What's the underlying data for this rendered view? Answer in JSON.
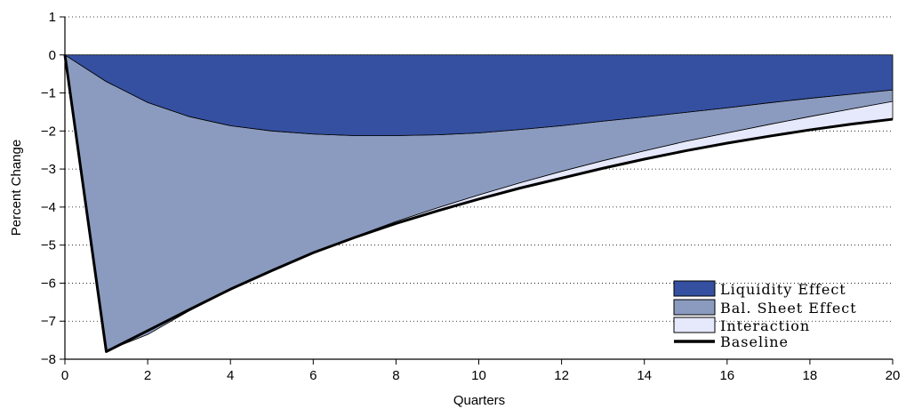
{
  "chart_data": {
    "type": "area",
    "xlabel": "Quarters",
    "ylabel": "Percent Change",
    "xlim": [
      0,
      20
    ],
    "ylim": [
      -8,
      1
    ],
    "x_ticks": [
      0,
      2,
      4,
      6,
      8,
      10,
      12,
      14,
      16,
      18,
      20
    ],
    "y_ticks": [
      1,
      0,
      -1,
      -2,
      -3,
      -4,
      -5,
      -6,
      -7,
      -8
    ],
    "grid": "horizontal dotted",
    "legend_position": "bottom-right",
    "x": [
      0,
      1,
      2,
      3,
      4,
      5,
      6,
      7,
      8,
      9,
      10,
      11,
      12,
      13,
      14,
      15,
      16,
      17,
      18,
      19,
      20
    ],
    "series": [
      {
        "name": "Liquidity Effect",
        "color": "#3550a0",
        "values": [
          0,
          -0.7,
          -1.25,
          -1.62,
          -1.86,
          -2.0,
          -2.08,
          -2.12,
          -2.12,
          -2.1,
          -2.05,
          -1.96,
          -1.86,
          -1.74,
          -1.63,
          -1.51,
          -1.39,
          -1.26,
          -1.14,
          -1.03,
          -0.92
        ]
      },
      {
        "name": "Bal. Sheet Effect",
        "color": "#8b9bbf",
        "cumulative": [
          0,
          -7.78,
          -7.35,
          -6.73,
          -6.17,
          -5.68,
          -5.2,
          -4.78,
          -4.38,
          -4.02,
          -3.68,
          -3.36,
          -3.06,
          -2.78,
          -2.52,
          -2.27,
          -2.05,
          -1.83,
          -1.62,
          -1.42,
          -1.22
        ]
      },
      {
        "name": "Interaction",
        "color": "#e6e8fb",
        "cumulative": [
          0,
          -7.8,
          -7.25,
          -6.7,
          -6.16,
          -5.67,
          -5.2,
          -4.8,
          -4.43,
          -4.1,
          -3.79,
          -3.5,
          -3.24,
          -2.98,
          -2.74,
          -2.52,
          -2.32,
          -2.14,
          -1.97,
          -1.82,
          -1.69
        ]
      },
      {
        "name": "Baseline",
        "color": "#000000",
        "values": [
          0,
          -7.8,
          -7.25,
          -6.7,
          -6.16,
          -5.67,
          -5.2,
          -4.8,
          -4.43,
          -4.1,
          -3.79,
          -3.5,
          -3.24,
          -2.98,
          -2.74,
          -2.52,
          -2.32,
          -2.14,
          -1.97,
          -1.82,
          -1.69
        ]
      }
    ]
  }
}
